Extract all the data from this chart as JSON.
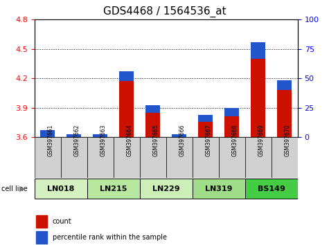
{
  "title": "GDS4468 / 1564536_at",
  "samples": [
    "GSM397661",
    "GSM397662",
    "GSM397663",
    "GSM397664",
    "GSM397665",
    "GSM397666",
    "GSM397667",
    "GSM397668",
    "GSM397669",
    "GSM397670"
  ],
  "cell_line_groups": [
    {
      "name": "LN018",
      "start": 0,
      "end": 2,
      "color": "#d4f0c0"
    },
    {
      "name": "LN215",
      "start": 2,
      "end": 4,
      "color": "#b8e8a0"
    },
    {
      "name": "LN229",
      "start": 4,
      "end": 6,
      "color": "#ccefb8"
    },
    {
      "name": "LN319",
      "start": 6,
      "end": 8,
      "color": "#a0dd88"
    },
    {
      "name": "BS149",
      "start": 8,
      "end": 10,
      "color": "#44cc44"
    }
  ],
  "count_values": [
    3.67,
    3.63,
    3.63,
    4.27,
    3.93,
    3.63,
    3.83,
    3.9,
    4.57,
    4.18
  ],
  "percentile_values": [
    7,
    5,
    4,
    8,
    7,
    3,
    6,
    7,
    14,
    8
  ],
  "ylim_left": [
    3.6,
    4.8
  ],
  "ylim_right": [
    0,
    100
  ],
  "yticks_left": [
    3.6,
    3.9,
    4.2,
    4.5,
    4.8
  ],
  "yticks_right": [
    0,
    25,
    50,
    75,
    100
  ],
  "bar_color_red": "#cc1100",
  "bar_color_blue": "#2255cc",
  "title_fontsize": 11,
  "tick_fontsize": 8,
  "label_fontsize": 7
}
